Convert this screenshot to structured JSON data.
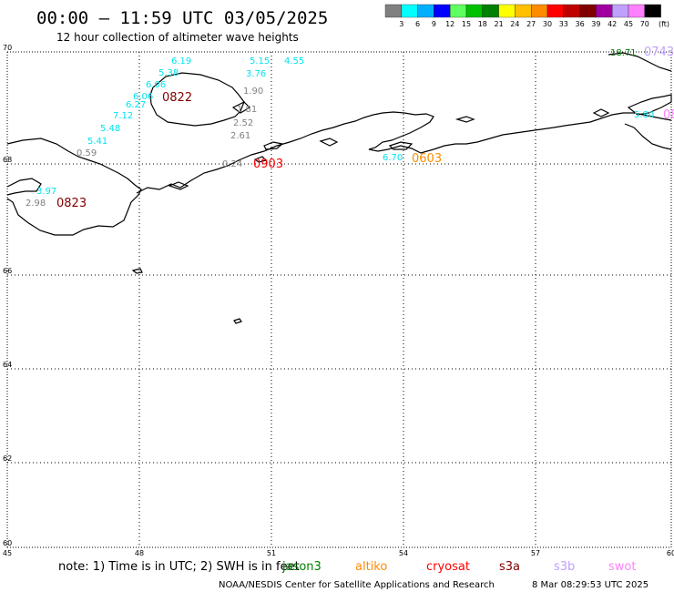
{
  "title": "00:00 – 11:59 UTC 03/05/2025",
  "subtitle": "12 hour collection of altimeter wave heights",
  "colorbar": {
    "colors": [
      "#808080",
      "#00ffff",
      "#00b0ff",
      "#0000ff",
      "#60ff60",
      "#00c000",
      "#008000",
      "#ffff00",
      "#ffc000",
      "#ff8c00",
      "#ff0000",
      "#c00000",
      "#800000",
      "#a000a0",
      "#c0a0ff",
      "#ff80ff",
      "#000000"
    ],
    "labels": [
      "3",
      "6",
      "9",
      "12",
      "15",
      "18",
      "21",
      "24",
      "27",
      "30",
      "33",
      "36",
      "39",
      "42",
      "45",
      "70"
    ],
    "unit": "(ft)"
  },
  "axes": {
    "lat_labels": [
      "70",
      "68",
      "66",
      "64",
      "62",
      "60"
    ],
    "lon_labels": [
      "45",
      "48",
      "51",
      "54",
      "57",
      "60"
    ]
  },
  "wave_labels": [
    {
      "text": "6.19",
      "color": "#00e5ee"
    },
    {
      "text": "5.38",
      "color": "#00e5ee"
    },
    {
      "text": "6.06",
      "color": "#00e5ee"
    },
    {
      "text": "6.06",
      "color": "#00e5ee"
    },
    {
      "text": "6.27",
      "color": "#00e5ee"
    },
    {
      "text": "7.12",
      "color": "#00e5ee"
    },
    {
      "text": "5.48",
      "color": "#00e5ee"
    },
    {
      "text": "5.41",
      "color": "#00e5ee"
    },
    {
      "text": "0.59",
      "color": "#808080"
    },
    {
      "text": "3.97",
      "color": "#00e5ee"
    },
    {
      "text": "2.98",
      "color": "#808080"
    },
    {
      "text": "5.15",
      "color": "#00e5ee"
    },
    {
      "text": "4.55",
      "color": "#00e5ee"
    },
    {
      "text": "3.76",
      "color": "#00e5ee"
    },
    {
      "text": "1.90",
      "color": "#808080"
    },
    {
      "text": "1.81",
      "color": "#808080"
    },
    {
      "text": "2.52",
      "color": "#808080"
    },
    {
      "text": "2.61",
      "color": "#808080"
    },
    {
      "text": "0.24",
      "color": "#808080"
    },
    {
      "text": "6.70",
      "color": "#00e5ee"
    },
    {
      "text": "18.71",
      "color": "#008000"
    },
    {
      "text": "5.80",
      "color": "#00e5ee"
    }
  ],
  "time_labels": [
    {
      "text": "0822",
      "color": "#800000"
    },
    {
      "text": "0823",
      "color": "#800000"
    },
    {
      "text": "0903",
      "color": "#ff0000"
    },
    {
      "text": "0603",
      "color": "#ff8c00"
    },
    {
      "text": "0743",
      "color": "#c0a0ff"
    },
    {
      "text": "08",
      "color": "#ff80ff"
    }
  ],
  "note": "note: 1) Time is in UTC; 2) SWH is in feet",
  "legend": [
    {
      "text": "jason3",
      "color": "#008000"
    },
    {
      "text": "altiko",
      "color": "#ff8c00"
    },
    {
      "text": "cryosat",
      "color": "#ff0000"
    },
    {
      "text": "s3a",
      "color": "#800000"
    },
    {
      "text": "s3b",
      "color": "#c0a0ff"
    },
    {
      "text": "swot",
      "color": "#ff80ff"
    }
  ],
  "footer_org": "NOAA/NESDIS Center for Satellite Applications and Research",
  "footer_time": "8 Mar 08:29:53 UTC 2025"
}
